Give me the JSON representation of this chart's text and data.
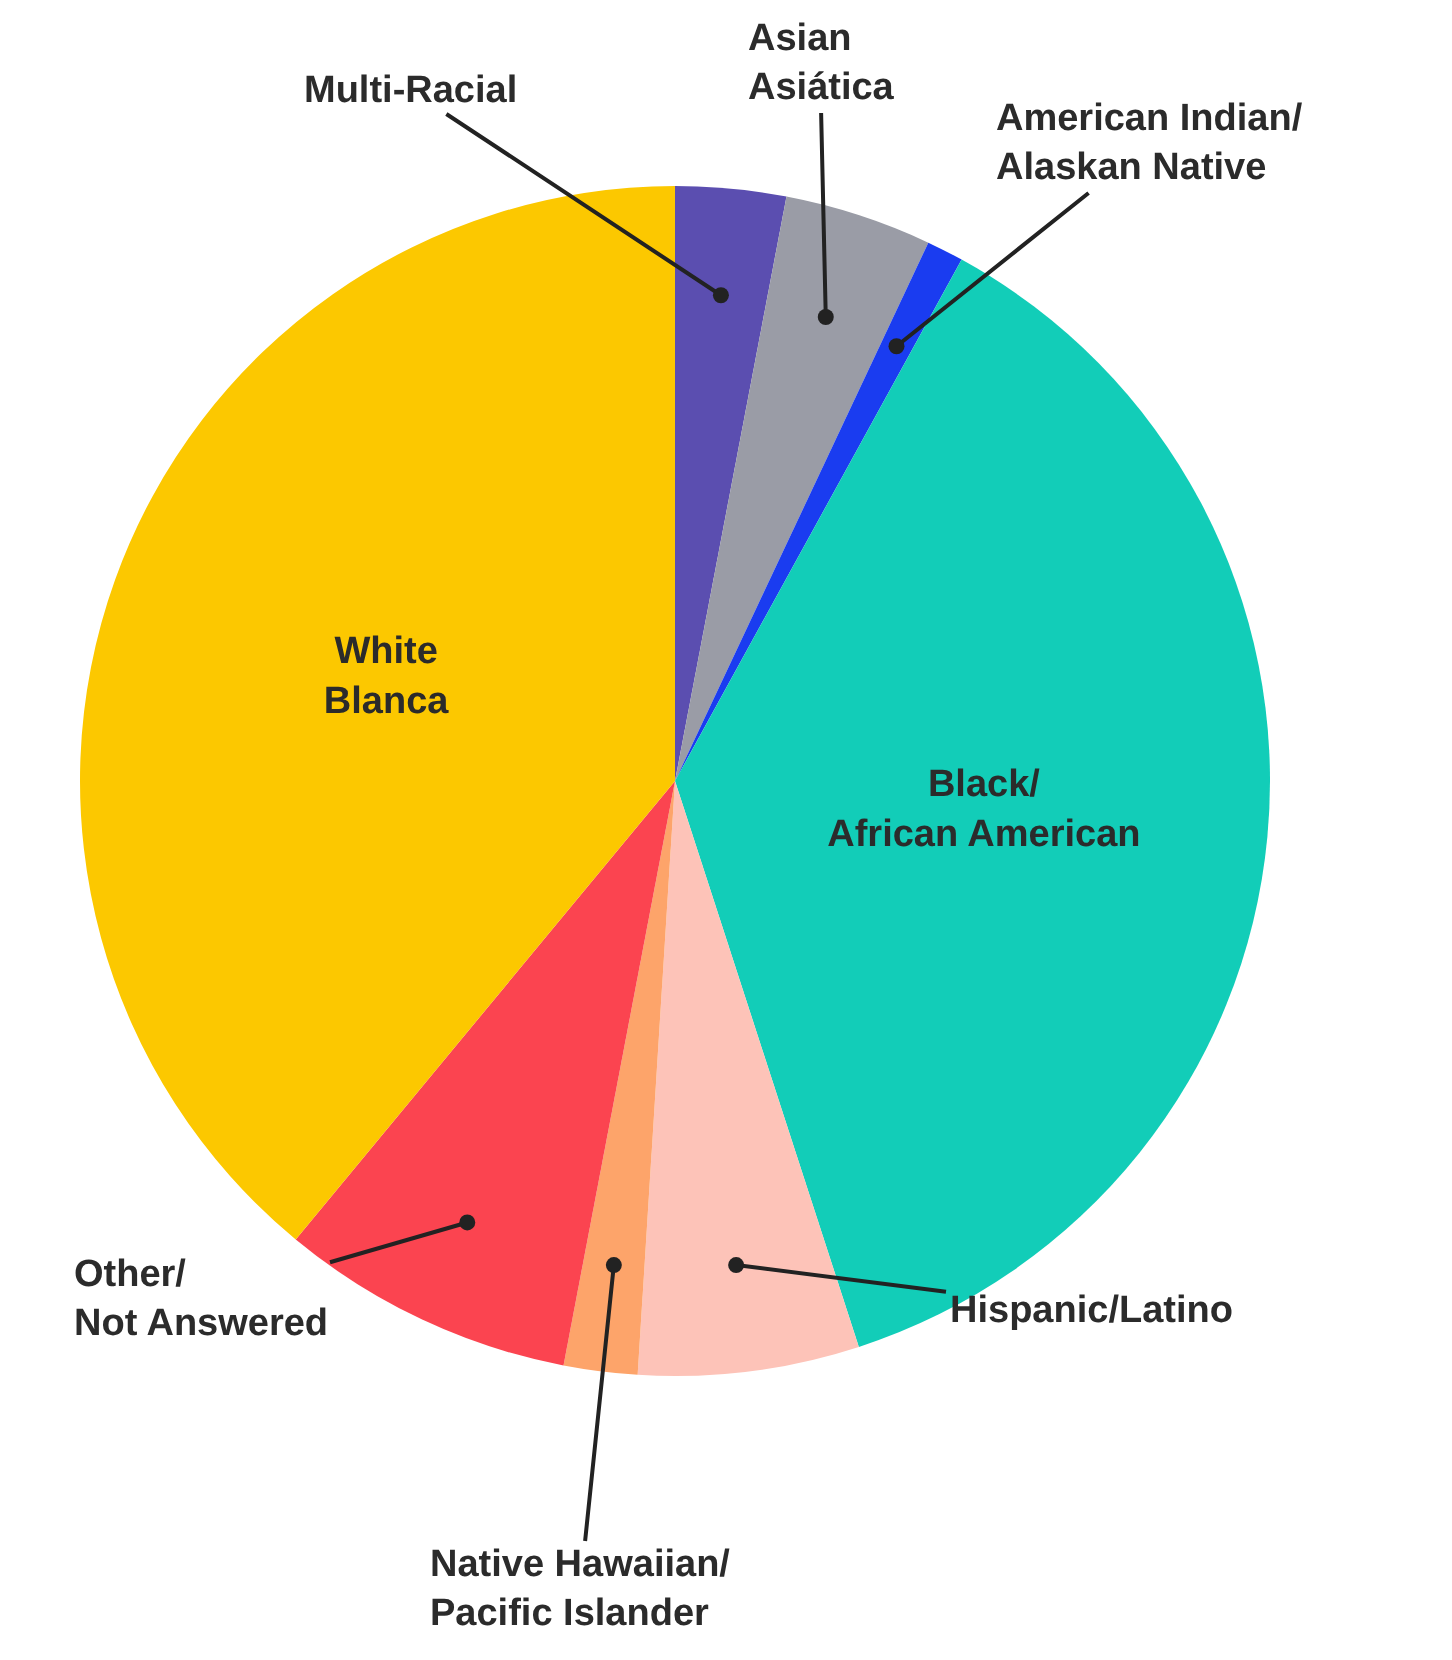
{
  "chart_data": {
    "type": "pie",
    "categories": [
      "Multi-Racial",
      "Asian\nAsiática",
      "American Indian/\nAlaskan Native",
      "Black/\nAfrican American",
      "Hispanic/Latino",
      "Native Hawaiian/\nPacific Islander",
      "Other/\nNot Answered",
      "White\nBlanca"
    ],
    "values": [
      3,
      4,
      1,
      37,
      6,
      2,
      8,
      39
    ],
    "colors": [
      "#5b4eb0",
      "#9a9ca6",
      "#1a3cf0",
      "#12cdb8",
      "#fdc3b8",
      "#fda46a",
      "#fb4450",
      "#fcc800"
    ],
    "legend": false
  }
}
